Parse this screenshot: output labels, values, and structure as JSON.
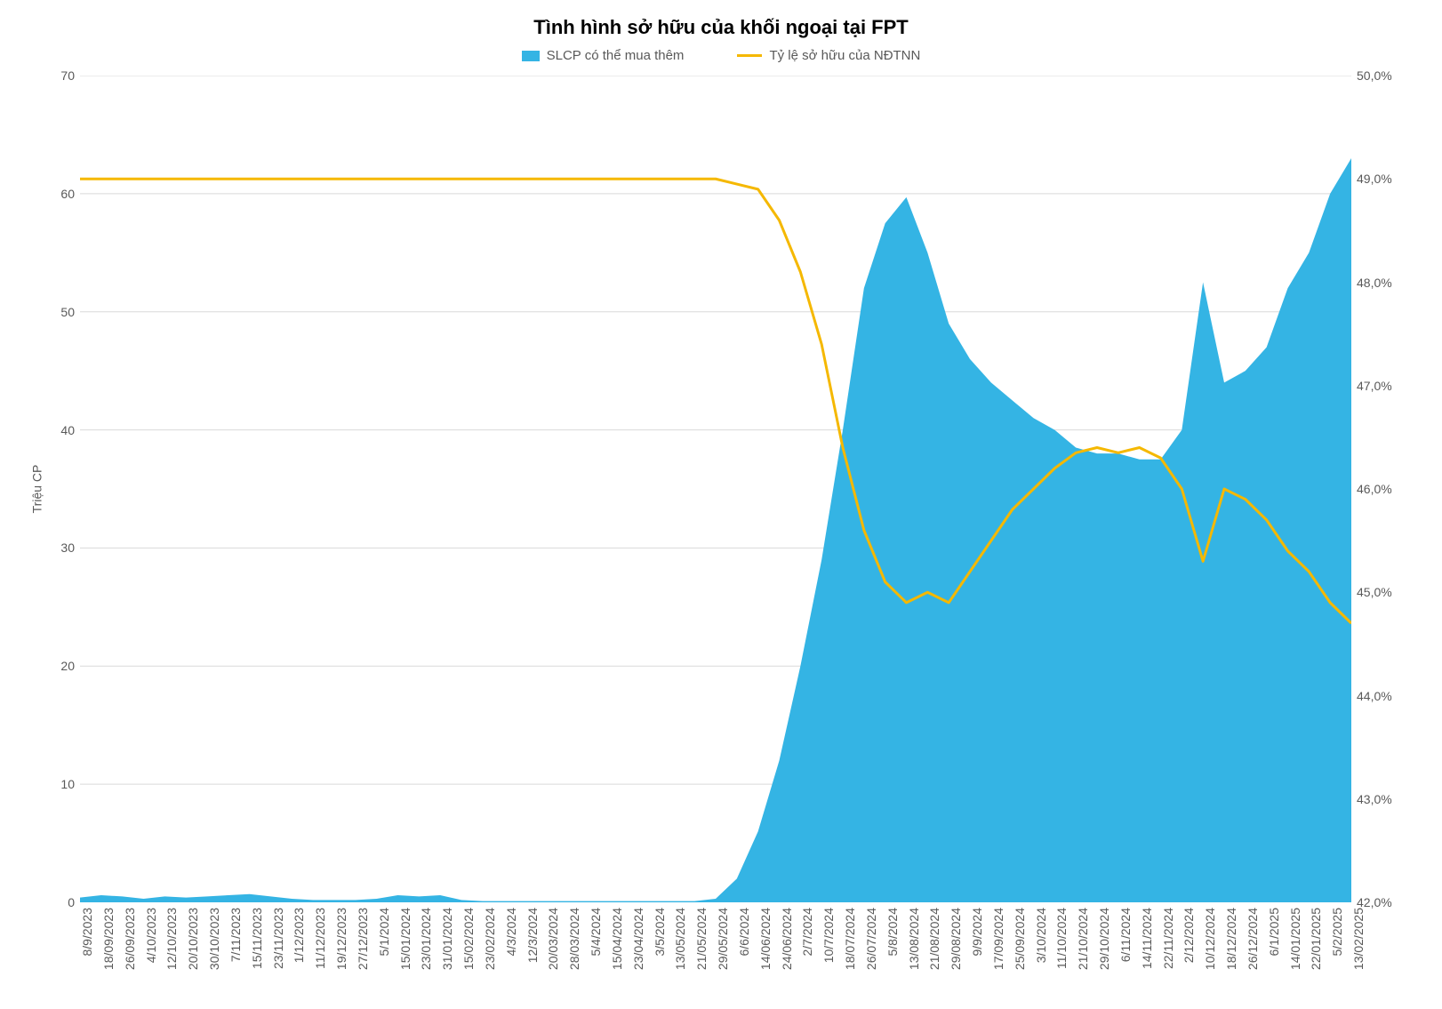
{
  "chart": {
    "type": "combo-area-line",
    "title": "Tình hình sở hữu của khối ngoại tại FPT",
    "title_fontsize": 22,
    "background_color": "#ffffff",
    "grid_color": "#d9d9d9",
    "axis_text_color": "#595959",
    "legend": {
      "items": [
        {
          "key": "area",
          "label": "SLCP có thể mua thêm",
          "color": "#34b4e4",
          "swatch": "box"
        },
        {
          "key": "line",
          "label": "Tỷ lệ sở hữu của NĐTNN",
          "color": "#f5b800",
          "swatch": "line"
        }
      ]
    },
    "y_left": {
      "label": "Triệu CP",
      "min": 0,
      "max": 70,
      "tick_step": 10,
      "label_fontsize": 14
    },
    "y_right": {
      "min": 42.0,
      "max": 50.0,
      "tick_step": 1.0,
      "suffix": "%",
      "decimal_sep": ",",
      "label_fontsize": 14
    },
    "x_labels": [
      "8/9/2023",
      "18/09/2023",
      "26/09/2023",
      "4/10/2023",
      "12/10/2023",
      "20/10/2023",
      "30/10/2023",
      "7/11/2023",
      "15/11/2023",
      "23/11/2023",
      "1/12/2023",
      "11/12/2023",
      "19/12/2023",
      "27/12/2023",
      "5/1/2024",
      "15/01/2024",
      "23/01/2024",
      "31/01/2024",
      "15/02/2024",
      "23/02/2024",
      "4/3/2024",
      "12/3/2024",
      "20/03/2024",
      "28/03/2024",
      "5/4/2024",
      "15/04/2024",
      "23/04/2024",
      "3/5/2024",
      "13/05/2024",
      "21/05/2024",
      "29/05/2024",
      "6/6/2024",
      "14/06/2024",
      "24/06/2024",
      "2/7/2024",
      "10/7/2024",
      "18/07/2024",
      "26/07/2024",
      "5/8/2024",
      "13/08/2024",
      "21/08/2024",
      "29/08/2024",
      "9/9/2024",
      "17/09/2024",
      "25/09/2024",
      "3/10/2024",
      "11/10/2024",
      "21/10/2024",
      "29/10/2024",
      "6/11/2024",
      "14/11/2024",
      "22/11/2024",
      "2/12/2024",
      "10/12/2024",
      "18/12/2024",
      "26/12/2024",
      "6/1/2025",
      "14/01/2025",
      "22/01/2025",
      "5/2/2025",
      "13/02/2025"
    ],
    "series_area_name": "SLCP có thể mua thêm",
    "series_area_color": "#34b4e4",
    "series_area_values": [
      0.4,
      0.6,
      0.5,
      0.3,
      0.5,
      0.4,
      0.5,
      0.6,
      0.7,
      0.5,
      0.3,
      0.2,
      0.2,
      0.2,
      0.3,
      0.6,
      0.5,
      0.6,
      0.2,
      0.1,
      0.1,
      0.1,
      0.1,
      0.1,
      0.1,
      0.1,
      0.1,
      0.1,
      0.1,
      0.1,
      0.3,
      2.0,
      6.0,
      12.0,
      20.0,
      29.0,
      40.0,
      52.0,
      57.5,
      59.7,
      55.0,
      49.0,
      46.0,
      44.0,
      42.5,
      41.0,
      40.0,
      38.5,
      38.0,
      38.0,
      37.5,
      37.5,
      40.0,
      52.5,
      44.0,
      45.0,
      47.0,
      52.0,
      55.0,
      60.0,
      63.0
    ],
    "series_line_name": "Tỷ lệ sở hữu của NĐTNN",
    "series_line_color": "#f5b800",
    "series_line_width": 3,
    "series_line_values": [
      49.0,
      49.0,
      49.0,
      49.0,
      49.0,
      49.0,
      49.0,
      49.0,
      49.0,
      49.0,
      49.0,
      49.0,
      49.0,
      49.0,
      49.0,
      49.0,
      49.0,
      49.0,
      49.0,
      49.0,
      49.0,
      49.0,
      49.0,
      49.0,
      49.0,
      49.0,
      49.0,
      49.0,
      49.0,
      49.0,
      49.0,
      48.95,
      48.9,
      48.6,
      48.1,
      47.4,
      46.4,
      45.6,
      45.1,
      44.9,
      45.0,
      44.9,
      45.2,
      45.5,
      45.8,
      46.0,
      46.2,
      46.35,
      46.4,
      46.35,
      46.4,
      46.3,
      46.0,
      45.3,
      46.0,
      45.9,
      45.7,
      45.4,
      45.2,
      44.9,
      44.7
    ],
    "x_label_fontsize": 14
  }
}
